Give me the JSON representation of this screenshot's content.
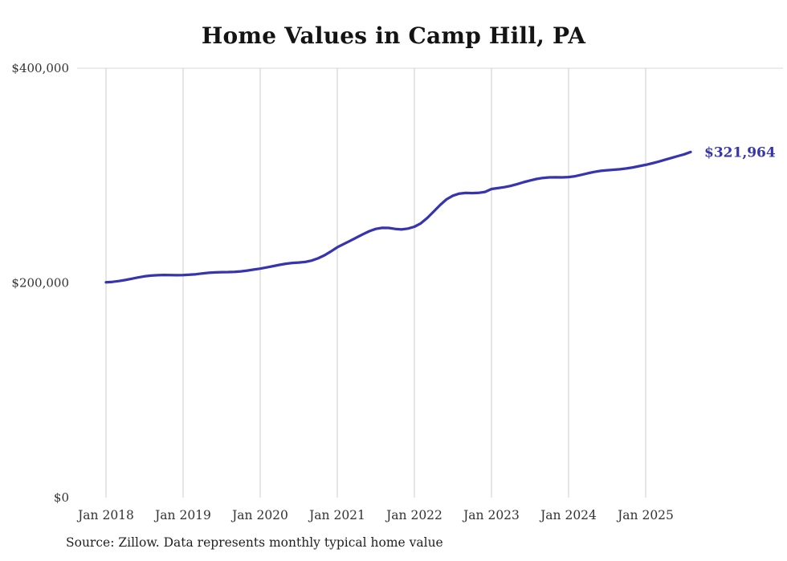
{
  "page": {
    "background": "#ffffff"
  },
  "chart_data": {
    "type": "line",
    "title": "Home Values in Camp Hill, PA",
    "source": "Source: Zillow. Data represents monthly typical home value",
    "end_label": "$321,964",
    "line_color": "#3634ae",
    "end_label_color": "#3634ae",
    "grid_color": "#cccccc",
    "top_rule_color": "#d9d9d9",
    "tick_label_color": "#333333",
    "grid": "vertical",
    "legend": "none",
    "x_start": "2018-01",
    "x_freq": "monthly",
    "ylim": [
      0,
      400000
    ],
    "yticks": [
      {
        "label": "$0",
        "value": 0
      },
      {
        "label": "$200,000",
        "value": 200000
      },
      {
        "label": "$400,000",
        "value": 400000
      }
    ],
    "xticks": [
      {
        "label": "Jan 2018",
        "month_index": 0
      },
      {
        "label": "Jan 2019",
        "month_index": 12
      },
      {
        "label": "Jan 2020",
        "month_index": 24
      },
      {
        "label": "Jan 2021",
        "month_index": 36
      },
      {
        "label": "Jan 2022",
        "month_index": 48
      },
      {
        "label": "Jan 2023",
        "month_index": 60
      },
      {
        "label": "Jan 2024",
        "month_index": 72
      },
      {
        "label": "Jan 2025",
        "month_index": 84
      }
    ],
    "series": [
      {
        "name": "Typical home value",
        "values": [
          200500,
          201000,
          201700,
          202700,
          203900,
          205100,
          206100,
          206800,
          207200,
          207400,
          207300,
          207200,
          207300,
          207600,
          208100,
          208800,
          209400,
          209800,
          210000,
          210100,
          210300,
          210800,
          211500,
          212400,
          213300,
          214400,
          215600,
          216800,
          217900,
          218600,
          219000,
          219500,
          220800,
          222900,
          225700,
          229300,
          233200,
          236200,
          239200,
          242300,
          245400,
          248200,
          250300,
          251300,
          251200,
          250300,
          249800,
          250600,
          252300,
          255500,
          260500,
          266500,
          272500,
          277800,
          281300,
          283200,
          283800,
          283700,
          283900,
          284800,
          287500,
          288300,
          289200,
          290400,
          292000,
          293800,
          295400,
          296800,
          297800,
          298300,
          298400,
          298300,
          298600,
          299400,
          300700,
          302100,
          303400,
          304400,
          305000,
          305400,
          305900,
          306600,
          307600,
          308800,
          310000,
          311400,
          313000,
          314700,
          316400,
          318100,
          319800,
          321964
        ]
      }
    ]
  }
}
